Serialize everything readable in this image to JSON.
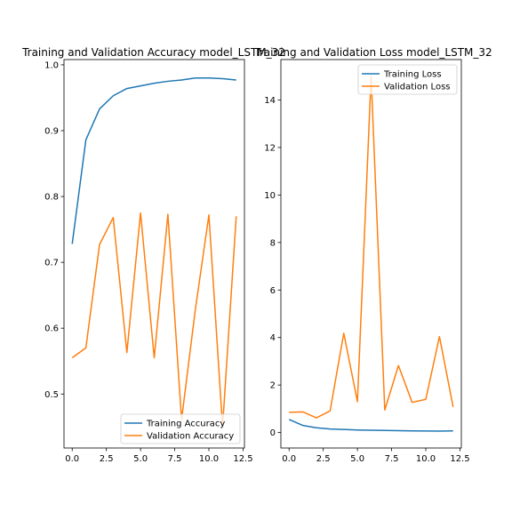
{
  "colors": {
    "training": "#1f77b4",
    "validation": "#ff7f0e"
  },
  "chart_data": [
    {
      "type": "line",
      "title": "Training and Validation Accuracy model_LSTM_32",
      "xlabel": "",
      "ylabel": "",
      "xlim": [
        -0.6,
        12.6
      ],
      "ylim": [
        0.418,
        1.008
      ],
      "x_ticks": [
        0.0,
        2.5,
        5.0,
        7.5,
        10.0,
        12.5
      ],
      "x_tick_labels": [
        "0.0",
        "2.5",
        "5.0",
        "7.5",
        "10.0",
        "12.5"
      ],
      "y_ticks": [
        0.5,
        0.6,
        0.7,
        0.8,
        0.9,
        1.0
      ],
      "y_tick_labels": [
        "0.5",
        "0.6",
        "0.7",
        "0.8",
        "0.9",
        "1.0"
      ],
      "legend_position": "lower-right",
      "grid": false,
      "x": [
        0,
        1,
        2,
        3,
        4,
        5,
        6,
        7,
        8,
        9,
        10,
        11,
        12
      ],
      "series": [
        {
          "name": "Training Accuracy",
          "color": "#1f77b4",
          "values": [
            0.728,
            0.886,
            0.933,
            0.953,
            0.964,
            0.968,
            0.972,
            0.975,
            0.977,
            0.98,
            0.98,
            0.979,
            0.977
          ]
        },
        {
          "name": "Validation Accuracy",
          "color": "#ff7f0e",
          "values": [
            0.555,
            0.57,
            0.727,
            0.768,
            0.563,
            0.775,
            0.555,
            0.773,
            0.461,
            0.627,
            0.772,
            0.45,
            0.77
          ]
        }
      ]
    },
    {
      "type": "line",
      "title": "Training and Validation Loss model_LSTM_32",
      "xlabel": "",
      "ylabel": "",
      "xlim": [
        -0.6,
        12.6
      ],
      "ylim": [
        -0.65,
        15.7
      ],
      "x_ticks": [
        0.0,
        2.5,
        5.0,
        7.5,
        10.0,
        12.5
      ],
      "x_tick_labels": [
        "0.0",
        "2.5",
        "5.0",
        "7.5",
        "10.0",
        "12.5"
      ],
      "y_ticks": [
        0,
        2,
        4,
        6,
        8,
        10,
        12,
        14
      ],
      "y_tick_labels": [
        "0",
        "2",
        "4",
        "6",
        "8",
        "10",
        "12",
        "14"
      ],
      "legend_position": "top-right",
      "grid": false,
      "x": [
        0,
        1,
        2,
        3,
        4,
        5,
        6,
        7,
        8,
        9,
        10,
        11,
        12
      ],
      "series": [
        {
          "name": "Training Loss",
          "color": "#1f77b4",
          "values": [
            0.55,
            0.3,
            0.2,
            0.15,
            0.13,
            0.11,
            0.1,
            0.09,
            0.08,
            0.07,
            0.065,
            0.06,
            0.07
          ]
        },
        {
          "name": "Validation Loss",
          "color": "#ff7f0e",
          "values": [
            0.85,
            0.87,
            0.62,
            0.91,
            4.18,
            1.3,
            15.0,
            0.95,
            2.82,
            1.27,
            1.4,
            4.04,
            1.08
          ]
        }
      ]
    }
  ]
}
